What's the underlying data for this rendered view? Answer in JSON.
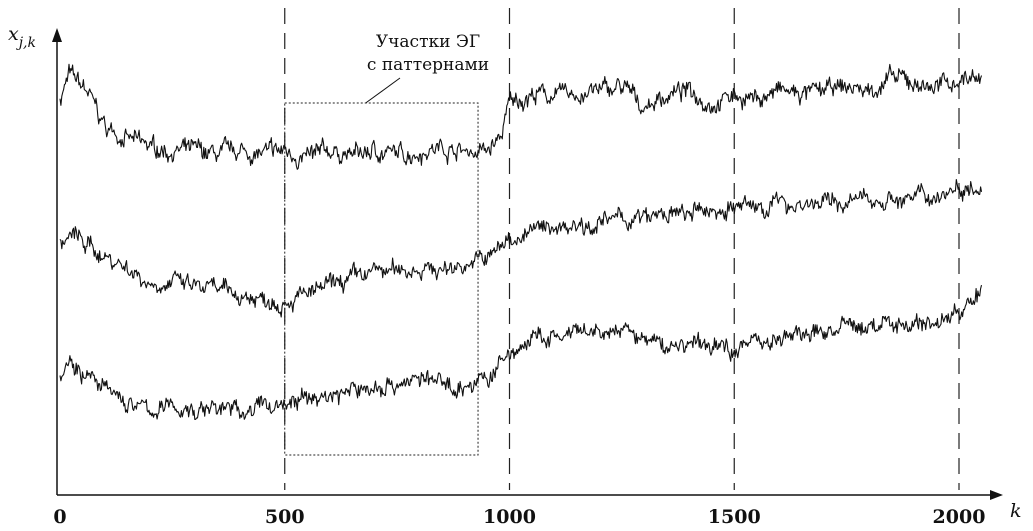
{
  "chart_data": {
    "type": "line",
    "title": "",
    "xlabel": "k",
    "ylabel": "x_{j,k}",
    "xlim": [
      0,
      2050
    ],
    "ylim": [
      0,
      12
    ],
    "grid": false,
    "xticks": [
      {
        "value": 0,
        "label": "0"
      },
      {
        "value": 500,
        "label": "500"
      },
      {
        "value": 1000,
        "label": "1000"
      },
      {
        "value": 1500,
        "label": "1500"
      },
      {
        "value": 2000,
        "label": "2000"
      }
    ],
    "vlines": [
      500,
      1000,
      1500,
      2000
    ],
    "highlight_region": {
      "x": [
        500,
        930
      ],
      "y": [
        1.0,
        9.8
      ]
    },
    "annotation": {
      "lines": [
        "Участки ЭГ",
        "с паттернами"
      ],
      "arrow_to": [
        680,
        9.8
      ]
    },
    "series": [
      {
        "x": [
          0,
          20,
          60,
          100,
          150,
          200,
          250,
          300,
          350,
          400,
          450,
          500,
          550,
          600,
          650,
          700,
          750,
          800,
          850,
          900,
          950,
          980,
          1000,
          1050,
          1100,
          1150,
          1200,
          1250,
          1300,
          1350,
          1400,
          1450,
          1500,
          1550,
          1600,
          1650,
          1700,
          1750,
          1800,
          1850,
          1900,
          1950,
          2000,
          2050
        ],
        "values": [
          9.9,
          10.5,
          10.1,
          9.2,
          8.9,
          8.7,
          8.6,
          8.6,
          8.5,
          8.6,
          8.5,
          8.6,
          8.4,
          8.6,
          8.5,
          8.6,
          8.5,
          8.6,
          8.7,
          8.6,
          8.6,
          8.9,
          9.8,
          10.0,
          10.0,
          10.0,
          10.1,
          10.2,
          9.7,
          10.0,
          10.1,
          9.8,
          10.0,
          9.9,
          10.1,
          10.0,
          10.1,
          10.2,
          10.1,
          10.4,
          10.3,
          10.2,
          10.4,
          10.5
        ]
      },
      {
        "x": [
          0,
          30,
          80,
          150,
          200,
          250,
          300,
          350,
          400,
          450,
          500,
          550,
          600,
          650,
          700,
          750,
          800,
          850,
          900,
          950,
          1000,
          1050,
          1100,
          1150,
          1200,
          1250,
          1300,
          1350,
          1400,
          1450,
          1500,
          1550,
          1600,
          1650,
          1700,
          1750,
          1800,
          1850,
          1900,
          1950,
          2000,
          2050
        ],
        "values": [
          6.3,
          6.5,
          6.1,
          5.7,
          5.3,
          5.3,
          5.2,
          5.1,
          5.0,
          4.9,
          4.9,
          5.0,
          5.2,
          5.4,
          5.6,
          5.6,
          5.7,
          5.6,
          5.8,
          5.9,
          6.4,
          6.6,
          6.7,
          6.8,
          6.8,
          6.9,
          6.9,
          7.0,
          7.0,
          7.1,
          7.2,
          7.2,
          7.3,
          7.3,
          7.3,
          7.3,
          7.4,
          7.4,
          7.4,
          7.5,
          7.7,
          7.8
        ]
      },
      {
        "x": [
          0,
          20,
          60,
          100,
          150,
          200,
          250,
          300,
          350,
          400,
          450,
          500,
          550,
          600,
          650,
          700,
          750,
          800,
          850,
          900,
          950,
          1000,
          1050,
          1100,
          1150,
          1200,
          1250,
          1300,
          1350,
          1400,
          1450,
          1500,
          1550,
          1600,
          1650,
          1700,
          1750,
          1800,
          1850,
          1900,
          1950,
          2000,
          2050
        ],
        "values": [
          3.0,
          3.4,
          3.0,
          2.6,
          2.3,
          2.1,
          2.2,
          2.1,
          2.2,
          2.1,
          2.2,
          2.3,
          2.4,
          2.5,
          2.6,
          2.7,
          2.8,
          2.9,
          2.8,
          2.7,
          2.9,
          3.5,
          3.9,
          3.9,
          4.0,
          4.0,
          4.1,
          3.9,
          3.7,
          3.8,
          3.7,
          3.7,
          3.9,
          3.9,
          4.0,
          4.1,
          4.2,
          4.2,
          4.3,
          4.3,
          4.3,
          4.6,
          5.0
        ]
      }
    ]
  }
}
